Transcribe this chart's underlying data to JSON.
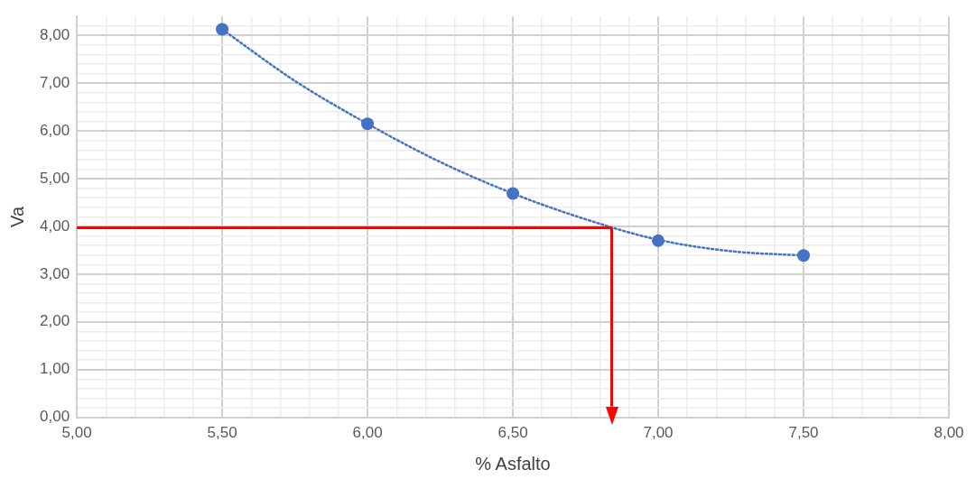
{
  "chart_data": {
    "type": "scatter",
    "xlabel": "% Asfalto",
    "ylabel": "Va",
    "series": [
      {
        "type": "line",
        "color": "#4472c4",
        "line_style": "dotted",
        "marker": "none",
        "x": [
          5.5,
          5.75,
          6.0,
          6.25,
          6.5,
          6.75,
          7.0,
          7.25,
          7.5
        ],
        "values": [
          8.13,
          7.05,
          6.15,
          5.35,
          4.69,
          4.15,
          3.72,
          3.48,
          3.39
        ]
      },
      {
        "color": "#4472c4",
        "marker": "circle",
        "x": [
          5.5,
          6.0,
          6.5,
          7.0,
          7.5
        ],
        "values": [
          8.13,
          6.15,
          4.69,
          3.7,
          3.39
        ]
      }
    ],
    "xlim": [
      5,
      8
    ],
    "ylim": [
      0,
      8.4
    ],
    "xticks": [
      {
        "value": 5,
        "label": "5,00"
      },
      {
        "value": 5.1,
        "label": null
      },
      {
        "value": 5.2,
        "label": null
      },
      {
        "value": 5.3,
        "label": null
      },
      {
        "value": 5.4,
        "label": null
      },
      {
        "value": 5.5,
        "label": "5,50"
      },
      {
        "value": 5.6,
        "label": null
      },
      {
        "value": 5.7,
        "label": null
      },
      {
        "value": 5.8,
        "label": null
      },
      {
        "value": 5.9,
        "label": null
      },
      {
        "value": 6,
        "label": "6,00"
      },
      {
        "value": 6.1,
        "label": null
      },
      {
        "value": 6.2,
        "label": null
      },
      {
        "value": 6.3,
        "label": null
      },
      {
        "value": 6.4,
        "label": null
      },
      {
        "value": 6.5,
        "label": "6,50"
      },
      {
        "value": 6.6,
        "label": null
      },
      {
        "value": 6.7,
        "label": null
      },
      {
        "value": 6.8,
        "label": null
      },
      {
        "value": 6.9,
        "label": null
      },
      {
        "value": 7,
        "label": "7,00"
      },
      {
        "value": 7.1,
        "label": null
      },
      {
        "value": 7.2,
        "label": null
      },
      {
        "value": 7.3,
        "label": null
      },
      {
        "value": 7.4,
        "label": null
      },
      {
        "value": 7.5,
        "label": "7,50"
      },
      {
        "value": 7.6,
        "label": null
      },
      {
        "value": 7.7,
        "label": null
      },
      {
        "value": 7.8,
        "label": null
      },
      {
        "value": 7.9,
        "label": null
      },
      {
        "value": 8,
        "label": "8,00"
      }
    ],
    "yticks": [
      {
        "value": 0,
        "label": "0,00"
      },
      {
        "value": 0.2,
        "label": null
      },
      {
        "value": 0.4,
        "label": null
      },
      {
        "value": 0.6,
        "label": null
      },
      {
        "value": 0.8,
        "label": null
      },
      {
        "value": 1,
        "label": "1,00"
      },
      {
        "value": 1.2,
        "label": null
      },
      {
        "value": 1.4,
        "label": null
      },
      {
        "value": 1.6,
        "label": null
      },
      {
        "value": 1.8,
        "label": null
      },
      {
        "value": 2,
        "label": "2,00"
      },
      {
        "value": 2.2,
        "label": null
      },
      {
        "value": 2.4,
        "label": null
      },
      {
        "value": 2.6,
        "label": null
      },
      {
        "value": 2.8,
        "label": null
      },
      {
        "value": 3,
        "label": "3,00"
      },
      {
        "value": 3.2,
        "label": null
      },
      {
        "value": 3.4,
        "label": null
      },
      {
        "value": 3.6,
        "label": null
      },
      {
        "value": 3.8,
        "label": null
      },
      {
        "value": 4,
        "label": "4,00"
      },
      {
        "value": 4.2,
        "label": null
      },
      {
        "value": 4.4,
        "label": null
      },
      {
        "value": 4.6,
        "label": null
      },
      {
        "value": 4.8,
        "label": null
      },
      {
        "value": 5,
        "label": "5,00"
      },
      {
        "value": 5.2,
        "label": null
      },
      {
        "value": 5.4,
        "label": null
      },
      {
        "value": 5.6,
        "label": null
      },
      {
        "value": 5.8,
        "label": null
      },
      {
        "value": 6,
        "label": "6,00"
      },
      {
        "value": 6.2,
        "label": null
      },
      {
        "value": 6.4,
        "label": null
      },
      {
        "value": 6.6,
        "label": null
      },
      {
        "value": 6.8,
        "label": null
      },
      {
        "value": 7,
        "label": "7,00"
      },
      {
        "value": 7.2,
        "label": null
      },
      {
        "value": 7.4,
        "label": null
      },
      {
        "value": 7.6,
        "label": null
      },
      {
        "value": 7.8,
        "label": null
      },
      {
        "value": 8,
        "label": "8,00"
      },
      {
        "value": 8.2,
        "label": null
      }
    ],
    "ref_lines": [
      {
        "axis": "y",
        "value": 3.97,
        "color": "#ff0000"
      },
      {
        "axis": "x",
        "value": 6.84,
        "color": "#ff0000"
      }
    ],
    "grid": true,
    "legend": false
  }
}
